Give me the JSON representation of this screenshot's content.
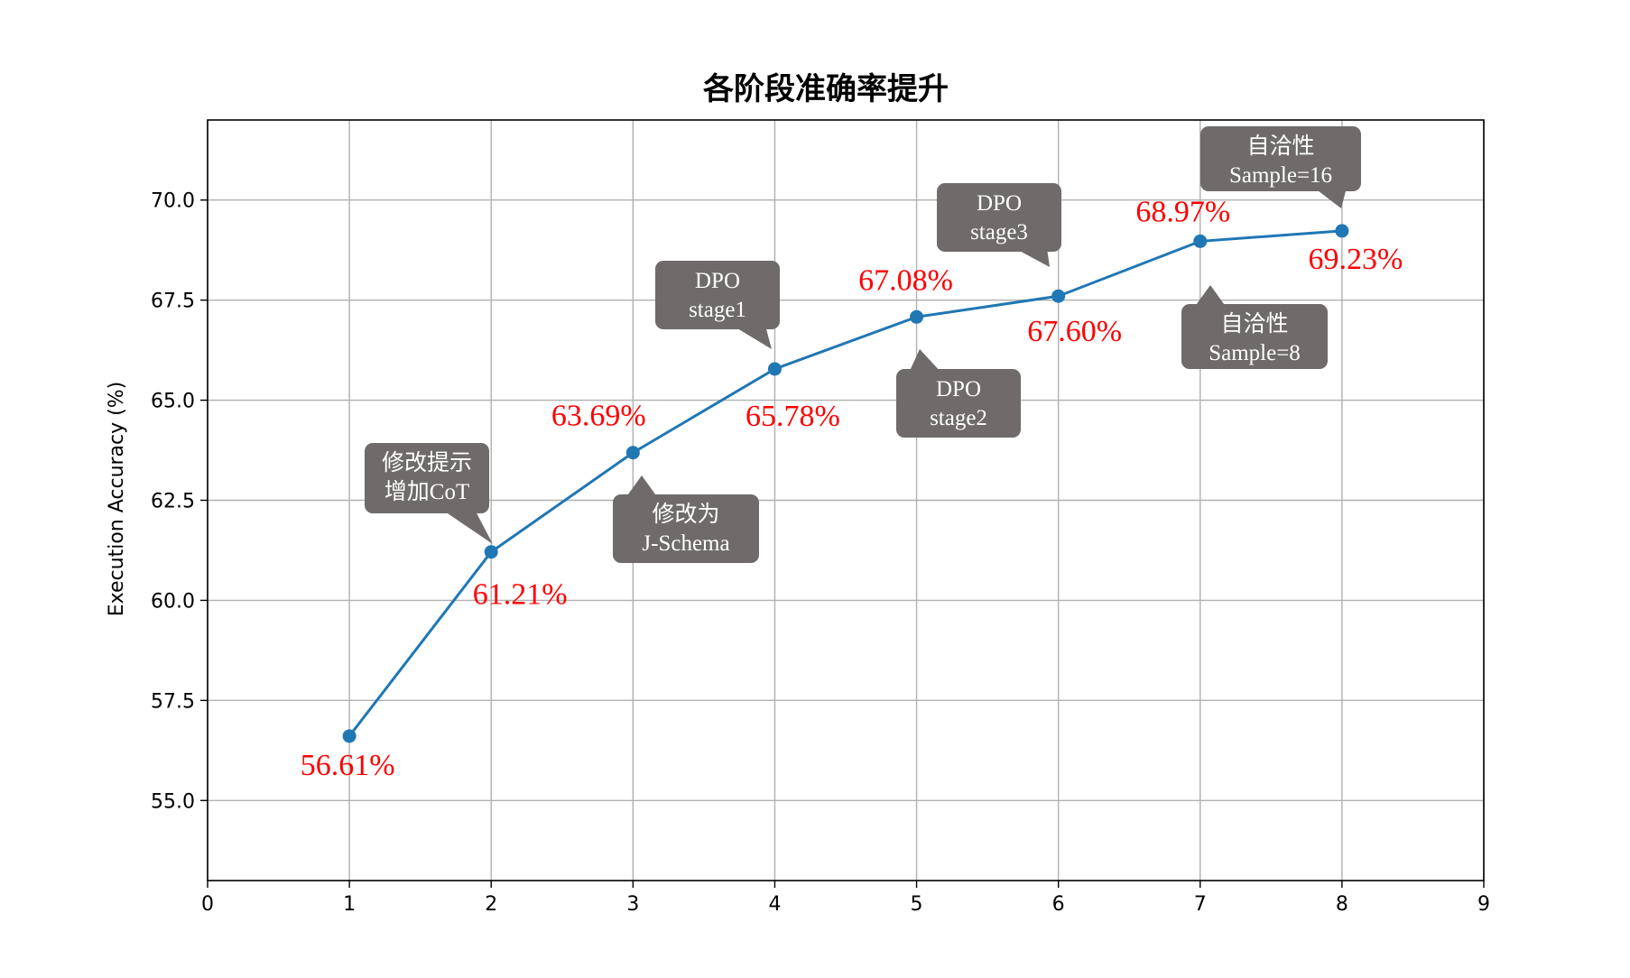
{
  "chart_data": {
    "type": "line",
    "title": "各阶段准确率提升",
    "xlabel": "",
    "ylabel": "Execution Accuracy (%)",
    "xlim": [
      0,
      9
    ],
    "ylim": [
      53,
      72
    ],
    "xticks": [
      "0",
      "1",
      "2",
      "3",
      "4",
      "5",
      "6",
      "7",
      "8",
      "9"
    ],
    "yticks": [
      "55.0",
      "57.5",
      "60.0",
      "62.5",
      "65.0",
      "67.5",
      "70.0"
    ],
    "grid": true,
    "line_color": "#1f77b4",
    "label_color": "#ff0000",
    "callout_color": "#6e6b6a",
    "series": [
      {
        "x": [
          1,
          2,
          3,
          4,
          5,
          6,
          7,
          8
        ],
        "values": [
          56.61,
          61.21,
          63.69,
          65.78,
          67.08,
          67.6,
          68.97,
          69.23
        ]
      }
    ],
    "data_labels": [
      "56.61%",
      "61.21%",
      "63.69%",
      "65.78%",
      "67.08%",
      "67.60%",
      "68.97%",
      "69.23%"
    ],
    "annotations": [
      {
        "x": 2,
        "lines": [
          "修改提示",
          "增加CoT"
        ]
      },
      {
        "x": 3,
        "lines": [
          "修改为",
          "J-Schema"
        ]
      },
      {
        "x": 4,
        "lines": [
          "DPO",
          "stage1"
        ]
      },
      {
        "x": 5,
        "lines": [
          "DPO",
          "stage2"
        ]
      },
      {
        "x": 6,
        "lines": [
          "DPO",
          "stage3"
        ]
      },
      {
        "x": 7,
        "lines": [
          "自洽性",
          "Sample=8"
        ]
      },
      {
        "x": 8,
        "lines": [
          "自洽性",
          "Sample=16"
        ]
      }
    ]
  }
}
